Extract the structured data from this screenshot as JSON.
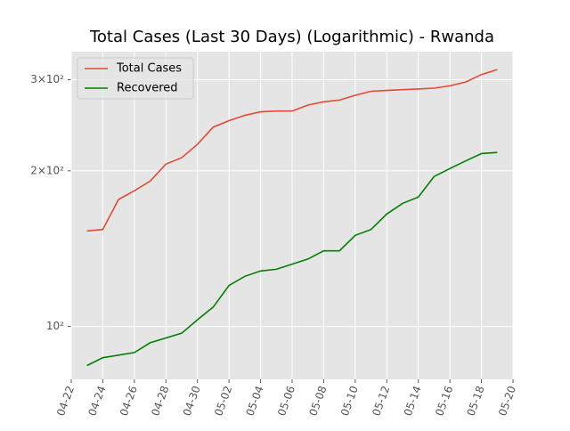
{
  "chart_data": {
    "type": "line",
    "title": "Total Cases (Last 30 Days) (Logarithmic) - Rwanda",
    "x": [
      "04-23",
      "04-24",
      "04-25",
      "04-26",
      "04-27",
      "04-28",
      "04-29",
      "04-30",
      "05-01",
      "05-02",
      "05-03",
      "05-04",
      "05-05",
      "05-06",
      "05-07",
      "05-08",
      "05-09",
      "05-10",
      "05-11",
      "05-12",
      "05-13",
      "05-14",
      "05-15",
      "05-16",
      "05-17",
      "05-18",
      "05-19"
    ],
    "series": [
      {
        "name": "Total Cases",
        "color": "#e24a33",
        "values": [
          153,
          154,
          176,
          183,
          191,
          206,
          212,
          225,
          243,
          250,
          256,
          260,
          261,
          261,
          268,
          272,
          274,
          280,
          285,
          286,
          287,
          288,
          289,
          292,
          297,
          307,
          314
        ]
      },
      {
        "name": "Recovered",
        "color": "#008000",
        "values": [
          84,
          87,
          88,
          89,
          93,
          95,
          97,
          103,
          109,
          120,
          125,
          128,
          129,
          132,
          135,
          140,
          140,
          150,
          154,
          165,
          173,
          178,
          195,
          202,
          209,
          216,
          217
        ]
      }
    ],
    "xlim": [
      "04-22",
      "05-20"
    ],
    "xticks": [
      "04-22",
      "04-24",
      "04-26",
      "04-28",
      "04-30",
      "05-02",
      "05-04",
      "05-06",
      "05-08",
      "05-10",
      "05-12",
      "05-14",
      "05-16",
      "05-18",
      "05-20"
    ],
    "ylim": [
      79,
      340
    ],
    "log_y": true,
    "yticks": [
      {
        "value": 100,
        "label": "10²"
      },
      {
        "value": 200,
        "label": "2×10²"
      },
      {
        "value": 300,
        "label": "3×10²"
      }
    ],
    "grid": true,
    "legend": "upper left"
  }
}
